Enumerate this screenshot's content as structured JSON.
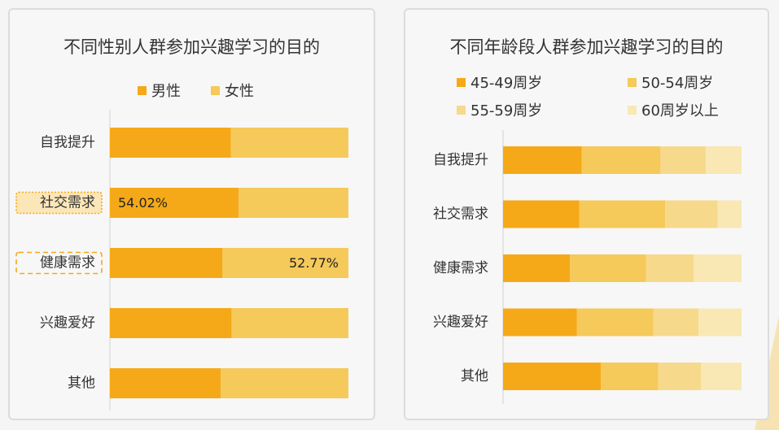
{
  "colors": {
    "male": "#f5a918",
    "female": "#f5c95a",
    "age_45_49": "#f5a918",
    "age_50_54": "#f5c95a",
    "age_55_59": "#f7d98c",
    "age_60_plus": "#f9e8b4"
  },
  "chart_data": [
    {
      "type": "bar",
      "orientation": "horizontal",
      "stacked": "percent",
      "title": "不同性别人群参加兴趣学习的目的",
      "legend_position": "top",
      "categories": [
        "自我提升",
        "社交需求",
        "健康需求",
        "兴趣爱好",
        "其他"
      ],
      "series": [
        {
          "name": "男性",
          "values": [
            50.7,
            54.02,
            47.23,
            51.0,
            46.5
          ]
        },
        {
          "name": "女性",
          "values": [
            49.3,
            45.98,
            52.77,
            49.0,
            53.5
          ]
        }
      ],
      "data_labels": [
        {
          "category": "社交需求",
          "series": "男性",
          "text": "54.02%"
        },
        {
          "category": "健康需求",
          "series": "女性",
          "text": "52.77%"
        }
      ],
      "highlighted_categories": [
        {
          "category": "社交需求",
          "style": "dotted"
        },
        {
          "category": "健康需求",
          "style": "dashed"
        }
      ],
      "ylim": [
        0,
        100
      ]
    },
    {
      "type": "bar",
      "orientation": "horizontal",
      "stacked": "percent",
      "title": "不同年龄段人群参加兴趣学习的目的",
      "legend_position": "top",
      "categories": [
        "自我提升",
        "社交需求",
        "健康需求",
        "兴趣爱好",
        "其他"
      ],
      "series": [
        {
          "name": "45-49周岁",
          "values": [
            33,
            32,
            28,
            31,
            41
          ]
        },
        {
          "name": "50-54周岁",
          "values": [
            33,
            36,
            32,
            32,
            24
          ]
        },
        {
          "name": "55-59周岁",
          "values": [
            19,
            22,
            20,
            19,
            18
          ]
        },
        {
          "name": "60周岁以上",
          "values": [
            15,
            10,
            20,
            18,
            17
          ]
        }
      ],
      "ylim": [
        0,
        100
      ]
    }
  ]
}
